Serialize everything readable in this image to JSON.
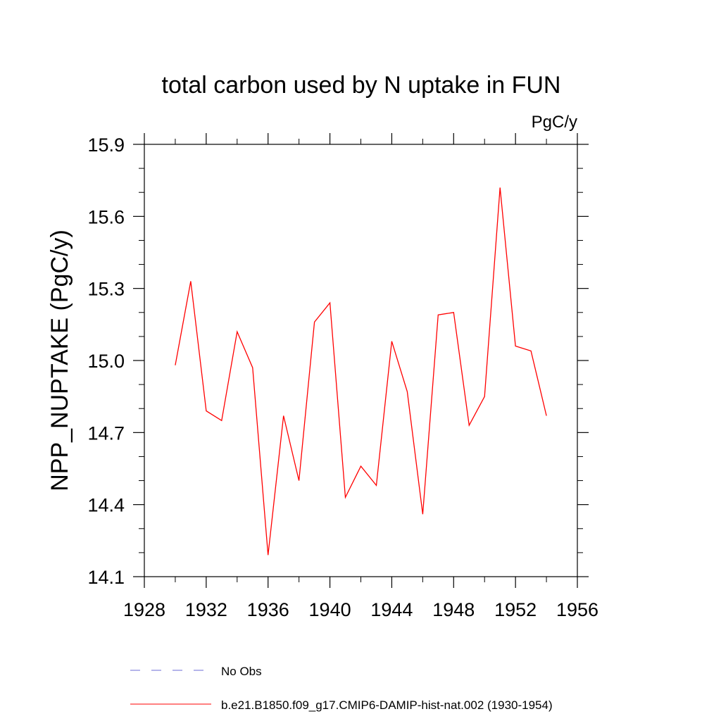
{
  "chart_data": {
    "type": "line",
    "title": "total carbon used by N uptake in FUN",
    "units_label": "PgC/y",
    "xlabel": "",
    "ylabel": "NPP_NUPTAKE  (PgC/y)",
    "xlim": [
      1928,
      1956
    ],
    "ylim": [
      14.1,
      15.9
    ],
    "xticks": [
      1928,
      1932,
      1936,
      1940,
      1944,
      1948,
      1952,
      1956
    ],
    "yticks": [
      14.1,
      14.4,
      14.7,
      15.0,
      15.3,
      15.6,
      15.9
    ],
    "x_minor_step": 2,
    "y_minor_step": 0.1,
    "grid": false,
    "series": [
      {
        "name": "b.e21.B1850.f09_g17.CMIP6-DAMIP-hist-nat.002 (1930-1954)",
        "color": "#ff0000",
        "dash": "solid",
        "x": [
          1930,
          1931,
          1932,
          1933,
          1934,
          1935,
          1936,
          1937,
          1938,
          1939,
          1940,
          1941,
          1942,
          1943,
          1944,
          1945,
          1946,
          1947,
          1948,
          1949,
          1950,
          1951,
          1952,
          1953,
          1954
        ],
        "y": [
          14.98,
          15.33,
          14.79,
          14.75,
          15.12,
          14.97,
          14.19,
          14.77,
          14.5,
          15.16,
          15.24,
          14.43,
          14.56,
          14.48,
          15.08,
          14.87,
          14.36,
          15.19,
          15.2,
          14.73,
          14.85,
          15.72,
          15.06,
          15.04,
          14.77
        ]
      }
    ],
    "legend": {
      "placement": "bottom",
      "entries": [
        {
          "label": "No Obs",
          "color": "#6b6bd6",
          "dash": "dashed"
        },
        {
          "label": "b.e21.B1850.f09_g17.CMIP6-DAMIP-hist-nat.002 (1930-1954)",
          "color": "#ff0000",
          "dash": "solid"
        }
      ]
    }
  }
}
